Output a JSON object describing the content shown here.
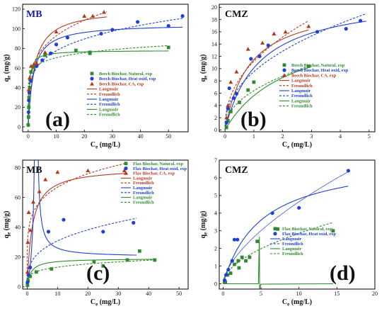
{
  "figure": {
    "background": "#ffffff"
  },
  "colors": {
    "natural": "#2e8b2e",
    "heat": "#1f3fd9",
    "ca": "#b03a1e"
  },
  "chart_data": [
    {
      "id": "a",
      "type": "scatter",
      "badge": "MB",
      "letter": "(a)",
      "xlabel_main": "C",
      "xlabel_sub": "e",
      "xlabel_unit": " (mg/L)",
      "ylabel_main": "q",
      "ylabel_sub": "e",
      "ylabel_unit": " (mg/g)",
      "xlim": [
        -2,
        57
      ],
      "ylim": [
        -5,
        125
      ],
      "xticks": [
        0,
        10,
        20,
        30,
        40,
        50
      ],
      "yticks": [
        0,
        20,
        40,
        60,
        80,
        100,
        120
      ],
      "legend": [
        {
          "label": "Beech Biochar, Natural, exp",
          "kind": "square",
          "color": "natural"
        },
        {
          "label": "Beech Biochar, Heat oxid, exp",
          "kind": "circle",
          "color": "heat"
        },
        {
          "label": "Beech Biochar, CA, exp",
          "kind": "triangle",
          "color": "ca"
        },
        {
          "label": "Langmuir",
          "kind": "solid",
          "color": "ca"
        },
        {
          "label": "Freundlich",
          "kind": "dash",
          "color": "ca"
        },
        {
          "label": "Langmuir",
          "kind": "solid",
          "color": "heat"
        },
        {
          "label": "Freundlich",
          "kind": "dash",
          "color": "heat"
        },
        {
          "label": "Langmuir",
          "kind": "solid",
          "color": "natural"
        },
        {
          "label": "Freundlich",
          "kind": "dash",
          "color": "natural"
        }
      ],
      "series": [
        {
          "kind": "square",
          "color": "natural",
          "points": [
            [
              0,
              2
            ],
            [
              0.1,
              10
            ],
            [
              0.2,
              20
            ],
            [
              0.3,
              30
            ],
            [
              0.5,
              40
            ],
            [
              0.8,
              48
            ],
            [
              1,
              56
            ],
            [
              2,
              61
            ],
            [
              6,
              73
            ],
            [
              17,
              78
            ],
            [
              22,
              76
            ],
            [
              22,
              75
            ],
            [
              50,
              81
            ]
          ]
        },
        {
          "kind": "circle",
          "color": "heat",
          "points": [
            [
              0.1,
              15
            ],
            [
              0.2,
              27
            ],
            [
              0.4,
              35
            ],
            [
              1,
              47
            ],
            [
              3,
              62
            ],
            [
              5,
              68
            ],
            [
              8,
              75
            ],
            [
              10,
              84
            ],
            [
              14,
              91
            ],
            [
              26,
              95
            ],
            [
              30,
              99
            ],
            [
              39,
              107
            ],
            [
              50,
              103
            ],
            [
              55,
              113
            ]
          ]
        },
        {
          "kind": "triangle",
          "color": "ca",
          "points": [
            [
              0.2,
              38
            ],
            [
              0.5,
              50
            ],
            [
              1,
              62
            ],
            [
              2,
              64
            ],
            [
              3,
              65
            ],
            [
              6,
              76
            ],
            [
              10,
              97
            ],
            [
              20,
              113
            ],
            [
              23,
              113
            ],
            [
              27,
              117
            ]
          ]
        }
      ],
      "curves": [
        {
          "model": "langmuir",
          "color": "ca",
          "style": "solid",
          "qmax": 121,
          "K": 0.45,
          "xmax": 28
        },
        {
          "model": "freundlich",
          "color": "ca",
          "style": "dash",
          "Kf": 55,
          "n": 4.4,
          "xmax": 28
        },
        {
          "model": "langmuir",
          "color": "heat",
          "style": "solid",
          "qmax": 105,
          "K": 0.55,
          "xmax": 55
        },
        {
          "model": "freundlich",
          "color": "heat",
          "style": "dash",
          "Kf": 48,
          "n": 4.8,
          "xmax": 55
        },
        {
          "model": "langmuir",
          "color": "natural",
          "style": "solid",
          "qmax": 78,
          "K": 2.5,
          "xmax": 50
        },
        {
          "model": "freundlich",
          "color": "natural",
          "style": "dash",
          "Kf": 56,
          "n": 10,
          "xmax": 50
        }
      ]
    },
    {
      "id": "b",
      "type": "scatter",
      "badge": "CMZ",
      "letter": "(b)",
      "xlabel_main": "C",
      "xlabel_sub": "e",
      "xlabel_unit": " (mg/L)",
      "ylabel_main": "q",
      "ylabel_sub": "e",
      "ylabel_unit": " (mg/g)",
      "xlim": [
        -0.2,
        5.2
      ],
      "ylim": [
        -0.3,
        20.5
      ],
      "xticks": [
        0,
        1,
        2,
        3,
        4,
        5
      ],
      "yticks": [
        0,
        2,
        4,
        6,
        8,
        10,
        12,
        14,
        16,
        18,
        20
      ],
      "legend": [
        {
          "label": "Beech Biochar, Natural, exp",
          "kind": "square",
          "color": "natural"
        },
        {
          "label": "Beech Biochar, Heat oxid, exp",
          "kind": "circle",
          "color": "heat"
        },
        {
          "label": "Beech Biochar, CA, exp",
          "kind": "triangle",
          "color": "ca"
        },
        {
          "label": "Langmuir",
          "kind": "solid",
          "color": "ca"
        },
        {
          "label": "Freundlich",
          "kind": "dash",
          "color": "ca"
        },
        {
          "label": "Langmuir",
          "kind": "solid",
          "color": "heat"
        },
        {
          "label": "Freundlich",
          "kind": "dash",
          "color": "heat"
        },
        {
          "label": "Langmuir",
          "kind": "solid",
          "color": "natural"
        },
        {
          "label": "Freundlich",
          "kind": "dash",
          "color": "natural"
        }
      ],
      "series": [
        {
          "kind": "square",
          "color": "natural",
          "points": [
            [
              0.05,
              0.4
            ],
            [
              0.1,
              1.5
            ],
            [
              0.2,
              3
            ],
            [
              0.5,
              4.5
            ],
            [
              0.8,
              6.5
            ],
            [
              1,
              7.8
            ],
            [
              2.9,
              10.4
            ]
          ]
        },
        {
          "kind": "circle",
          "color": "heat",
          "points": [
            [
              0.05,
              1.2
            ],
            [
              0.1,
              3.5
            ],
            [
              0.15,
              6.8
            ],
            [
              0.3,
              5.2
            ],
            [
              0.4,
              5.9
            ],
            [
              0.9,
              11.6
            ],
            [
              1.2,
              12
            ],
            [
              1.5,
              13.8
            ],
            [
              3.2,
              16
            ],
            [
              4.2,
              16.5
            ],
            [
              4.7,
              17.8
            ]
          ]
        },
        {
          "kind": "triangle",
          "color": "ca",
          "points": [
            [
              0.05,
              2
            ],
            [
              0.1,
              4
            ],
            [
              0.2,
              7.8
            ],
            [
              0.4,
              9.5
            ],
            [
              0.8,
              13.2
            ],
            [
              1.3,
              14.2
            ],
            [
              1.7,
              15.7
            ],
            [
              2.1,
              16
            ],
            [
              2.9,
              16.9
            ]
          ]
        }
      ],
      "curves": [
        {
          "model": "langmuir",
          "color": "ca",
          "style": "solid",
          "qmax": 21,
          "K": 1.2,
          "xmax": 2.9
        },
        {
          "model": "freundlich",
          "color": "ca",
          "style": "dash",
          "Kf": 11.2,
          "n": 2.3,
          "xmax": 2.9
        },
        {
          "model": "langmuir",
          "color": "heat",
          "style": "solid",
          "qmax": 22,
          "K": 0.85,
          "xmax": 4.9
        },
        {
          "model": "freundlich",
          "color": "heat",
          "style": "dash",
          "Kf": 9.5,
          "n": 2.3,
          "xmax": 4.9
        },
        {
          "model": "langmuir",
          "color": "natural",
          "style": "solid",
          "qmax": 18,
          "K": 0.45,
          "xmax": 3
        },
        {
          "model": "freundlich",
          "color": "natural",
          "style": "dash",
          "Kf": 6.4,
          "n": 2.2,
          "xmax": 3
        }
      ]
    },
    {
      "id": "c",
      "type": "scatter",
      "badge": "MB",
      "letter": "(c)",
      "xlabel_main": "C",
      "xlabel_sub": "e",
      "xlabel_unit": " (mg/L)",
      "ylabel_main": "q",
      "ylabel_sub": "e",
      "ylabel_unit": " (mg/g)",
      "xlim": [
        -1.5,
        53
      ],
      "ylim": [
        -1.5,
        85
      ],
      "xticks": [
        0,
        10,
        20,
        30,
        40,
        50
      ],
      "yticks": [
        0,
        20,
        40,
        60,
        80
      ],
      "legend": [
        {
          "label": "Flax Biochar, Natural, exp",
          "kind": "square",
          "color": "natural"
        },
        {
          "label": "Flax Biochar, Heat oxid, exp",
          "kind": "circle",
          "color": "heat"
        },
        {
          "label": "Flax Biochar, CA, exp",
          "kind": "triangle",
          "color": "ca"
        },
        {
          "label": "Langmuir",
          "kind": "solid",
          "color": "ca"
        },
        {
          "label": "Freundlich",
          "kind": "dash",
          "color": "ca"
        },
        {
          "label": "Langmuir",
          "kind": "solid",
          "color": "heat"
        },
        {
          "label": "Freundlich",
          "kind": "dash",
          "color": "heat"
        },
        {
          "label": "Langmuir",
          "kind": "solid",
          "color": "natural"
        },
        {
          "label": "Freundlich",
          "kind": "dash",
          "color": "natural"
        }
      ],
      "series": [
        {
          "kind": "square",
          "color": "natural",
          "points": [
            [
              0.1,
              1
            ],
            [
              0.3,
              4
            ],
            [
              1,
              7
            ],
            [
              3,
              10
            ],
            [
              8,
              12
            ],
            [
              22,
              17
            ],
            [
              25,
              14
            ],
            [
              33,
              18
            ],
            [
              37,
              24
            ],
            [
              42,
              18
            ]
          ]
        },
        {
          "kind": "circle",
          "color": "heat",
          "points": [
            [
              0.1,
              3
            ],
            [
              0.4,
              8
            ],
            [
              1,
              13
            ],
            [
              7,
              37
            ],
            [
              12,
              45
            ],
            [
              25,
              37
            ],
            [
              35,
              43
            ]
          ]
        },
        {
          "kind": "triangle",
          "color": "ca",
          "points": [
            [
              0.1,
              10
            ],
            [
              0.2,
              30
            ],
            [
              0.5,
              50
            ],
            [
              1,
              38
            ],
            [
              2,
              57
            ],
            [
              4,
              64
            ],
            [
              6,
              72
            ],
            [
              10,
              77
            ],
            [
              20,
              78
            ],
            [
              32,
              78
            ]
          ]
        }
      ],
      "curves": [
        {
          "model": "langmuir",
          "color": "ca",
          "style": "solid",
          "qmax": 80,
          "K": 0.6,
          "xmax": 33
        },
        {
          "model": "freundlich",
          "color": "ca",
          "style": "dash",
          "Kf": 44,
          "n": 5.5,
          "xmax": 33
        },
        {
          "model": "hyper",
          "color": "heat",
          "style": "solid",
          "a": 20,
          "b": 210,
          "x0": 3.0,
          "xmax": 36
        },
        {
          "model": "freundlich",
          "color": "heat",
          "style": "dash",
          "Kf": 15,
          "n": 3.2,
          "xmax": 36
        },
        {
          "model": "langmuir",
          "color": "natural",
          "style": "solid",
          "qmax": 19,
          "K": 0.8,
          "xmax": 42
        },
        {
          "model": "freundlich",
          "color": "natural",
          "style": "dash",
          "Kf": 8,
          "n": 4.6,
          "xmax": 42
        }
      ]
    },
    {
      "id": "d",
      "type": "scatter",
      "badge": "CMZ",
      "letter": "(d)",
      "xlabel_main": "C",
      "xlabel_sub": "e",
      "xlabel_unit": " (mg/L)",
      "ylabel_main": "q",
      "ylabel_sub": "e",
      "ylabel_unit": " (mg/g)",
      "xlim": [
        -0.5,
        20
      ],
      "ylim": [
        -0.3,
        7
      ],
      "xticks": [
        0,
        5,
        10,
        15,
        20
      ],
      "yticks": [
        0,
        1,
        2,
        3,
        4,
        5,
        6,
        7
      ],
      "legend": [
        {
          "label": "Flax Biochar, Natural, exp",
          "kind": "square",
          "color": "natural"
        },
        {
          "label": "Flax Biochar, Heat oxid, exp",
          "kind": "circle",
          "color": "heat"
        },
        {
          "label": "Langmuir",
          "kind": "solid",
          "color": "heat"
        },
        {
          "label": "Freundlich",
          "kind": "dash",
          "color": "heat"
        },
        {
          "label": "Langmuir",
          "kind": "solid",
          "color": "natural"
        },
        {
          "label": "Freundlich",
          "kind": "dash",
          "color": "natural"
        }
      ],
      "series": [
        {
          "kind": "square",
          "color": "natural",
          "points": [
            [
              0.3,
              0.1
            ],
            [
              0.6,
              0.5
            ],
            [
              1,
              0.6
            ],
            [
              1.5,
              1.1
            ],
            [
              2,
              1.3
            ],
            [
              2.1,
              0.9
            ],
            [
              2.5,
              1.5
            ],
            [
              3,
              1.3
            ],
            [
              3.5,
              1.5
            ],
            [
              4.5,
              2.4
            ],
            [
              7.2,
              3.1
            ],
            [
              14.5,
              3
            ]
          ]
        },
        {
          "kind": "circle",
          "color": "heat",
          "points": [
            [
              0.2,
              0.2
            ],
            [
              0.4,
              0.5
            ],
            [
              0.7,
              0.8
            ],
            [
              1.2,
              1.3
            ],
            [
              1.5,
              2.5
            ],
            [
              1.9,
              2.5
            ],
            [
              6.5,
              4
            ],
            [
              10,
              4.3
            ],
            [
              16.5,
              6.4
            ]
          ]
        }
      ],
      "curves": [
        {
          "model": "langmuir",
          "color": "heat",
          "style": "solid",
          "qmax": 7.2,
          "K": 0.2,
          "xmax": 16.5
        },
        {
          "model": "freundlich",
          "color": "heat",
          "style": "thin",
          "Kf": 1.1,
          "n": 1.6,
          "xmax": 16.5
        },
        {
          "model": "spike",
          "color": "natural",
          "style": "solid",
          "x0": 4.8,
          "xmax": 14.5
        },
        {
          "model": "freundlich",
          "color": "natural",
          "style": "dash",
          "Kf": 0.85,
          "n": 1.9,
          "xmax": 14.5
        }
      ]
    }
  ]
}
